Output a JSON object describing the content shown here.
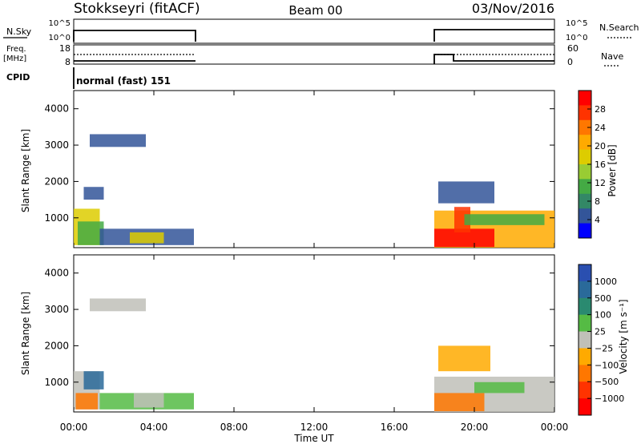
{
  "header": {
    "title": "Stokkseyri (fitACF)",
    "beam": "Beam 00",
    "date": "03/Nov/2016"
  },
  "top_panels": {
    "nsky_label": "N.Sky",
    "nsky_ticks": [
      "10^5",
      "10^0"
    ],
    "nsearch_label": "N.Search",
    "nsearch_ticks": [
      "10^5",
      "10^0"
    ],
    "freq_label_1": "Freq.",
    "freq_label_2": "[MHz]",
    "freq_ticks": [
      "18",
      "8"
    ],
    "nave_label": "Nave",
    "nave_ticks": [
      "60",
      "0"
    ],
    "cpid_label": "CPID",
    "cpid_value": "normal (fast) 151"
  },
  "axes": {
    "ylabel": "Slant Range [km]",
    "yticks": [
      "4000",
      "3000",
      "2000",
      "1000"
    ],
    "xticks": [
      "00:00",
      "04:00",
      "08:00",
      "12:00",
      "16:00",
      "20:00",
      "00:00"
    ],
    "xlabel": "Time UT"
  },
  "power_bar": {
    "label": "Power [dB]",
    "ticks": [
      "28",
      "24",
      "20",
      "16",
      "12",
      "8",
      "4"
    ],
    "colors": [
      "#ff0000",
      "#ff3300",
      "#ff7700",
      "#ffaa00",
      "#ddcc00",
      "#99cc33",
      "#44aa44",
      "#338866",
      "#335599",
      "#0000ff"
    ]
  },
  "velocity_bar": {
    "label": "Velocity [m s⁻¹]",
    "ticks": [
      "1000",
      "500",
      "100",
      "25",
      "−25",
      "−100",
      "−500",
      "−1000"
    ],
    "colors": [
      "#2a4fb0",
      "#2a6a9a",
      "#2a8a70",
      "#55bb44",
      "#c0c0b8",
      "#ffaa00",
      "#ff7700",
      "#ff3300",
      "#ff0000"
    ]
  },
  "chart_data": {
    "type": "heatmap",
    "x_range_hours": [
      0,
      24
    ],
    "y_range_km": [
      180,
      4500
    ],
    "observing_intervals_hours": [
      [
        0,
        6
      ],
      [
        18,
        24
      ]
    ],
    "power_regions": [
      {
        "t0": 0.0,
        "t1": 1.3,
        "r0": 250,
        "r1": 1250,
        "color": "#ddcc00"
      },
      {
        "t0": 0.2,
        "t1": 1.5,
        "r0": 250,
        "r1": 900,
        "color": "#44aa44"
      },
      {
        "t0": 1.3,
        "t1": 6.0,
        "r0": 250,
        "r1": 700,
        "color": "#335599"
      },
      {
        "t0": 2.8,
        "t1": 4.5,
        "r0": 300,
        "r1": 600,
        "color": "#ddcc00"
      },
      {
        "t0": 0.8,
        "t1": 3.6,
        "r0": 2950,
        "r1": 3300,
        "color": "#335599"
      },
      {
        "t0": 0.5,
        "t1": 1.5,
        "r0": 1500,
        "r1": 1850,
        "color": "#335599"
      },
      {
        "t0": 18.0,
        "t1": 24.0,
        "r0": 180,
        "r1": 1200,
        "color": "#ffaa00"
      },
      {
        "t0": 18.0,
        "t1": 21.0,
        "r0": 200,
        "r1": 700,
        "color": "#ff0000"
      },
      {
        "t0": 19.0,
        "t1": 19.8,
        "r0": 600,
        "r1": 1300,
        "color": "#ff3300"
      },
      {
        "t0": 19.5,
        "t1": 23.5,
        "r0": 800,
        "r1": 1100,
        "color": "#44aa44"
      },
      {
        "t0": 18.2,
        "t1": 21.0,
        "r0": 1400,
        "r1": 2000,
        "color": "#335599"
      }
    ],
    "velocity_regions": [
      {
        "t0": 0.0,
        "t1": 1.3,
        "r0": 250,
        "r1": 1300,
        "color": "#c0c0b8"
      },
      {
        "t0": 0.1,
        "t1": 1.2,
        "r0": 250,
        "r1": 700,
        "color": "#ff7700"
      },
      {
        "t0": 0.5,
        "t1": 1.5,
        "r0": 800,
        "r1": 1300,
        "color": "#2a6a9a"
      },
      {
        "t0": 1.3,
        "t1": 6.0,
        "r0": 250,
        "r1": 700,
        "color": "#55bb44"
      },
      {
        "t0": 3.0,
        "t1": 4.5,
        "r0": 300,
        "r1": 700,
        "color": "#c0c0b8"
      },
      {
        "t0": 0.8,
        "t1": 3.6,
        "r0": 2950,
        "r1": 3300,
        "color": "#c0c0b8"
      },
      {
        "t0": 18.0,
        "t1": 24.0,
        "r0": 180,
        "r1": 1150,
        "color": "#c0c0b8"
      },
      {
        "t0": 18.0,
        "t1": 20.5,
        "r0": 200,
        "r1": 700,
        "color": "#ff7700"
      },
      {
        "t0": 18.2,
        "t1": 20.8,
        "r0": 1300,
        "r1": 2000,
        "color": "#ffaa00"
      },
      {
        "t0": 20.0,
        "t1": 22.5,
        "r0": 700,
        "r1": 1000,
        "color": "#55bb44"
      }
    ]
  }
}
